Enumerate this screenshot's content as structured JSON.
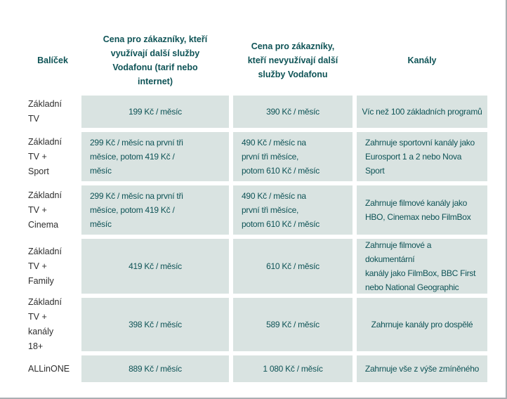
{
  "colors": {
    "accent_teal_text": "#0e5356",
    "cell_background": "#d9e3e1",
    "row_label_text": "#2e2e2e",
    "edge_border": "#aaaeb2"
  },
  "table": {
    "headers": {
      "package": "Balíček",
      "price_with_services": "Cena pro zákazníky, kteří\nvyužívají další služby\nVodafonu (tarif nebo\ninternet)",
      "price_without_services": "Cena pro zákazníky,\nkteří nevyužívají další\nslužby Vodafonu",
      "channels": "Kanály"
    },
    "rows": [
      {
        "package": "Základní\nTV",
        "price_with": "199 Kč / měsíc",
        "price_without": "390 Kč / měsíc",
        "channels": "Víc než 100 základních programů"
      },
      {
        "package": "Základní\nTV +\nSport",
        "price_with": "299 Kč / měsíc na první tři\nměsíce, potom 419 Kč /\nměsíc",
        "price_without": "490 Kč / měsíc na\nprvní tři měsíce,\npotom 610 Kč / měsíc",
        "channels": "Zahrnuje sportovní kanály jako\nEurosport 1 a 2 nebo Nova Sport"
      },
      {
        "package": "Základní\nTV +\nCinema",
        "price_with": "299 Kč / měsíc na první tři\nměsíce, potom 419 Kč /\nměsíc",
        "price_without": "490 Kč / měsíc na\nprvní tři měsíce,\npotom 610 Kč / měsíc",
        "channels": "Zahrnuje filmové kanály jako\nHBO, Cinemax nebo FilmBox"
      },
      {
        "package": "Základní\nTV +\nFamily",
        "price_with": "419 Kč / měsíc",
        "price_without": "610 Kč / měsíc",
        "channels": "Zahrnuje filmové a dokumentární\nkanály jako FilmBox, BBC First\nnebo National Geographic"
      },
      {
        "package": "Základní\nTV +\nkanály\n18+",
        "price_with": "398 Kč / měsíc",
        "price_without": "589 Kč / měsíc",
        "channels": "Zahrnuje kanály pro dospělé"
      },
      {
        "package": "ALLinONE",
        "price_with": "889 Kč / měsíc",
        "price_without": "1 080 Kč / měsíc",
        "channels": "Zahrnuje vše z výše zmíněného"
      }
    ]
  }
}
